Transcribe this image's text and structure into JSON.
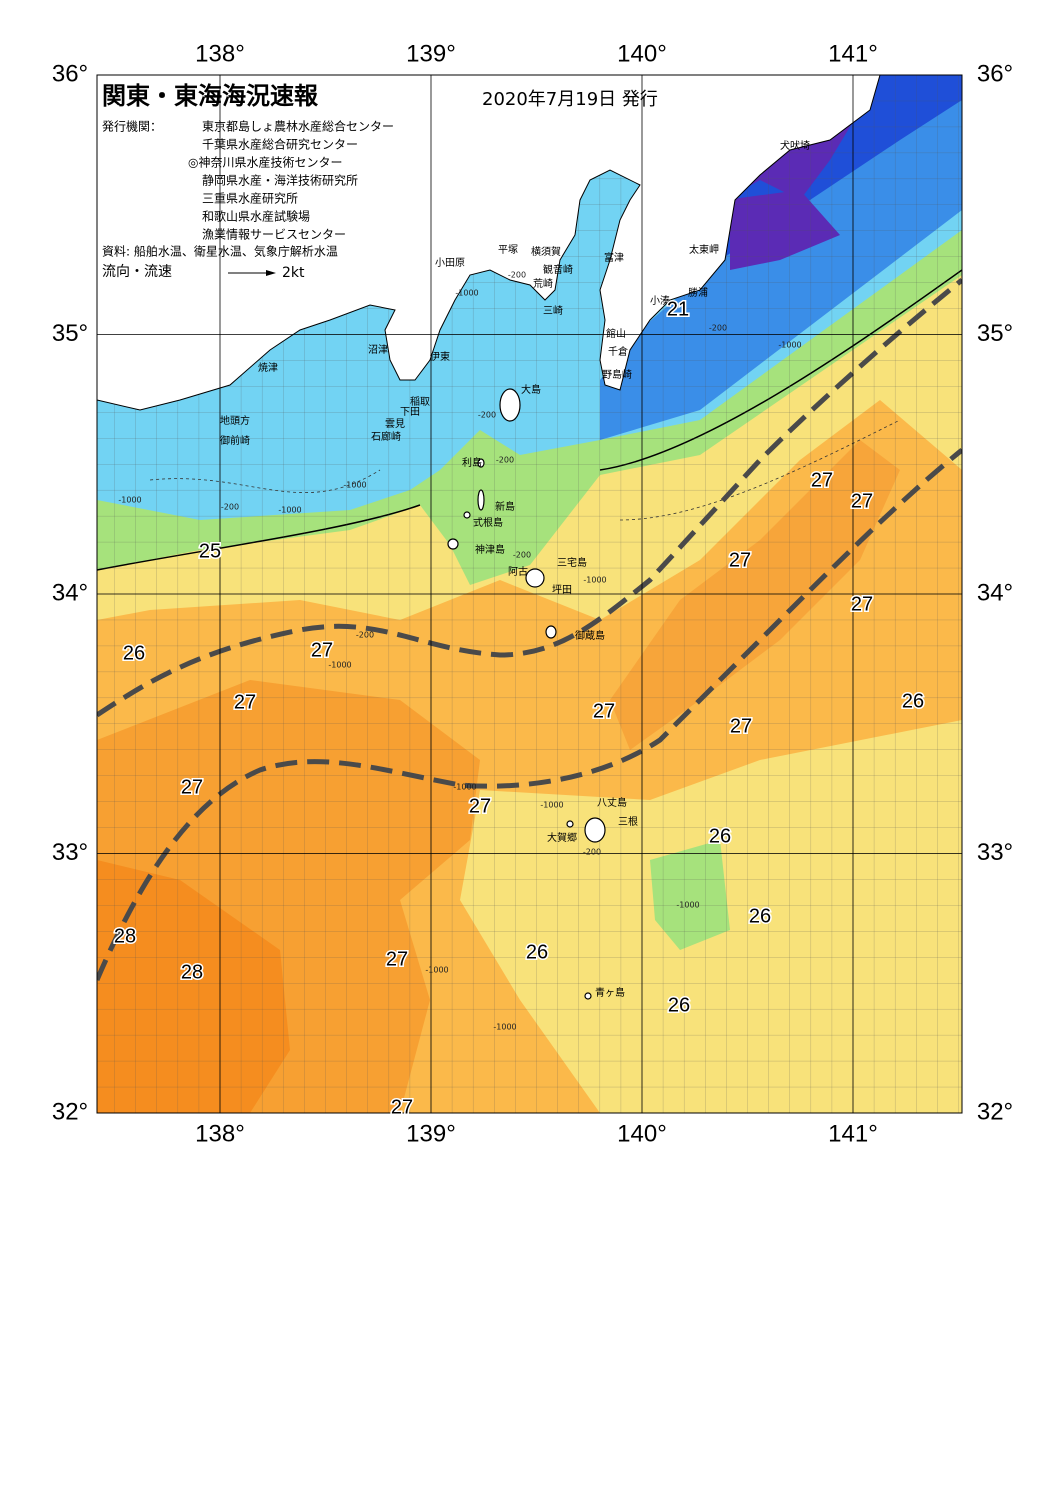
{
  "header": {
    "title": "関東・東海海況速報",
    "issue_date": "2020年7月19日 発行",
    "publisher_label": "発行機関：",
    "publishers": [
      "東京都島しょ農林水産総合センター",
      "千葉県水産総合研究センター",
      "◎神奈川県水産技術センター",
      "静岡県水産・海洋技術研究所",
      "三重県水産研究所",
      "和歌山県水産試験場",
      "漁業情報サービスセンター"
    ],
    "sources": "資料: 船舶水温、衛星水温、気象庁解析水温",
    "flow_label": "流向・流速",
    "flow_scale": "2kt"
  },
  "axes": {
    "lon_ticks": [
      {
        "value": 138,
        "label": "138°"
      },
      {
        "value": 139,
        "label": "139°"
      },
      {
        "value": 140,
        "label": "140°"
      },
      {
        "value": 141,
        "label": "141°"
      }
    ],
    "lat_ticks": [
      {
        "value": 36,
        "label": "36°"
      },
      {
        "value": 35,
        "label": "35°"
      },
      {
        "value": 34,
        "label": "34°"
      },
      {
        "value": 33,
        "label": "33°"
      },
      {
        "value": 32,
        "label": "32°"
      }
    ]
  },
  "place_names": [
    "小田原",
    "平塚",
    "横須賀",
    "観音崎",
    "荒崎",
    "三崎",
    "富津",
    "館山",
    "千倉",
    "野島崎",
    "小湊",
    "勝浦",
    "太東岬",
    "犬吠埼",
    "沼津",
    "伊東",
    "焼津",
    "稲取",
    "下田",
    "雲見",
    "石廊崎",
    "地頭方",
    "御前崎",
    "大島",
    "利島",
    "新島",
    "式根島",
    "神津島",
    "三宅島",
    "阿古",
    "坪田",
    "御蔵島",
    "八丈島",
    "三根",
    "大賀郷",
    "青ヶ島"
  ],
  "temperature_labels": [
    21,
    25,
    26,
    27,
    27,
    27,
    28,
    28,
    27,
    27,
    27,
    27,
    27,
    27,
    27,
    27,
    27,
    26,
    26,
    26,
    26,
    26
  ],
  "depth_labels": [
    -1000,
    -200,
    -200,
    -200,
    -1000,
    -1000,
    -200,
    -1000,
    -200,
    -1000,
    -200,
    -1000,
    -1000,
    -1000,
    -200,
    -1000,
    -1000,
    -1000,
    -1000,
    -200
  ]
}
